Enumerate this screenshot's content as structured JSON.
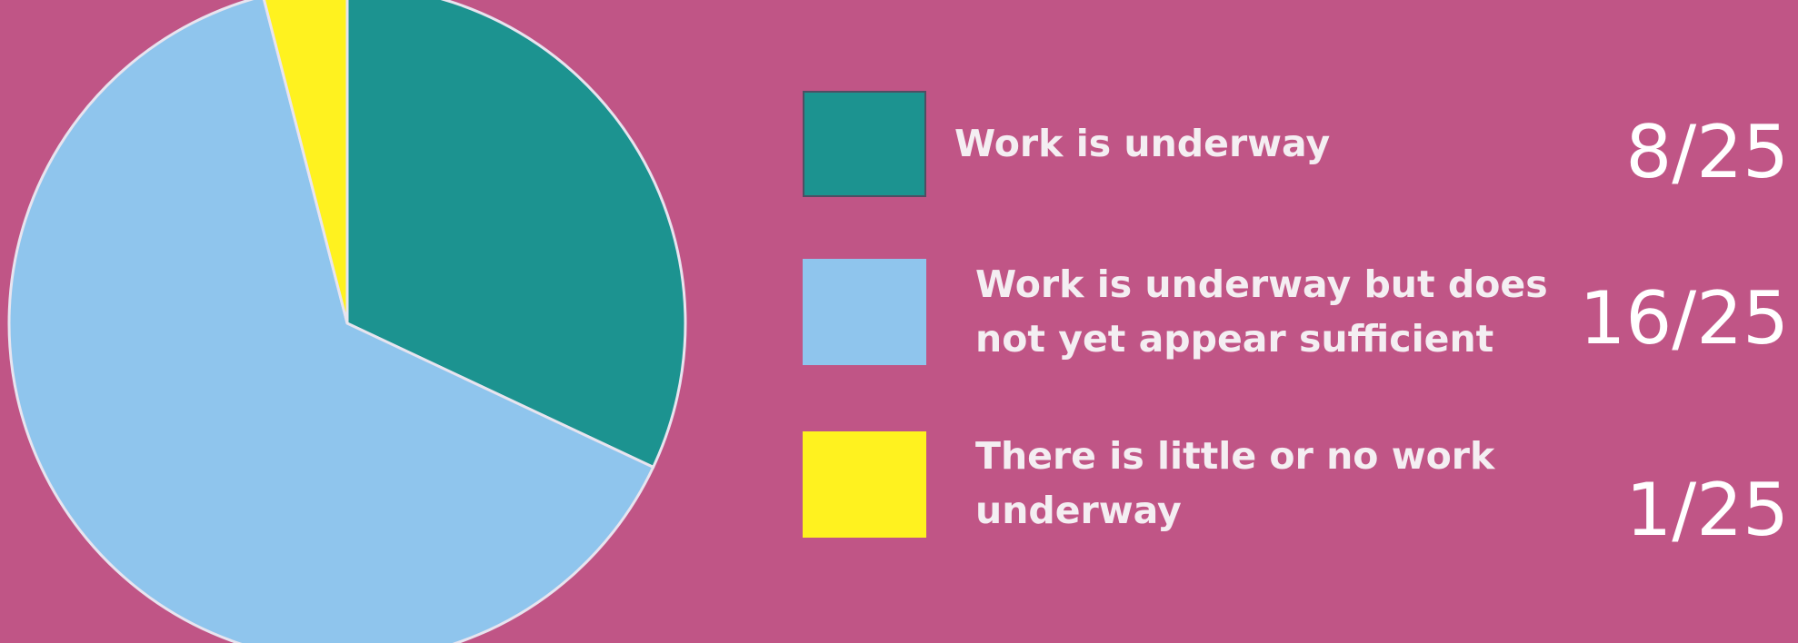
{
  "chart_data": {
    "type": "pie",
    "title": "",
    "slices": [
      {
        "label": "Work is underway",
        "value": 8,
        "display": "8/25",
        "color": "#1c9390"
      },
      {
        "label": "Work is underway but does\nnot yet appear sufficient",
        "value": 16,
        "display": "16/25",
        "color": "#8fc5ed"
      },
      {
        "label": "There is little or no work\nunderway",
        "value": 1,
        "display": "1/25",
        "color": "#fff21f"
      }
    ],
    "total": 25,
    "legend_position": "right",
    "slice_border_color": "#e8e4ef"
  }
}
